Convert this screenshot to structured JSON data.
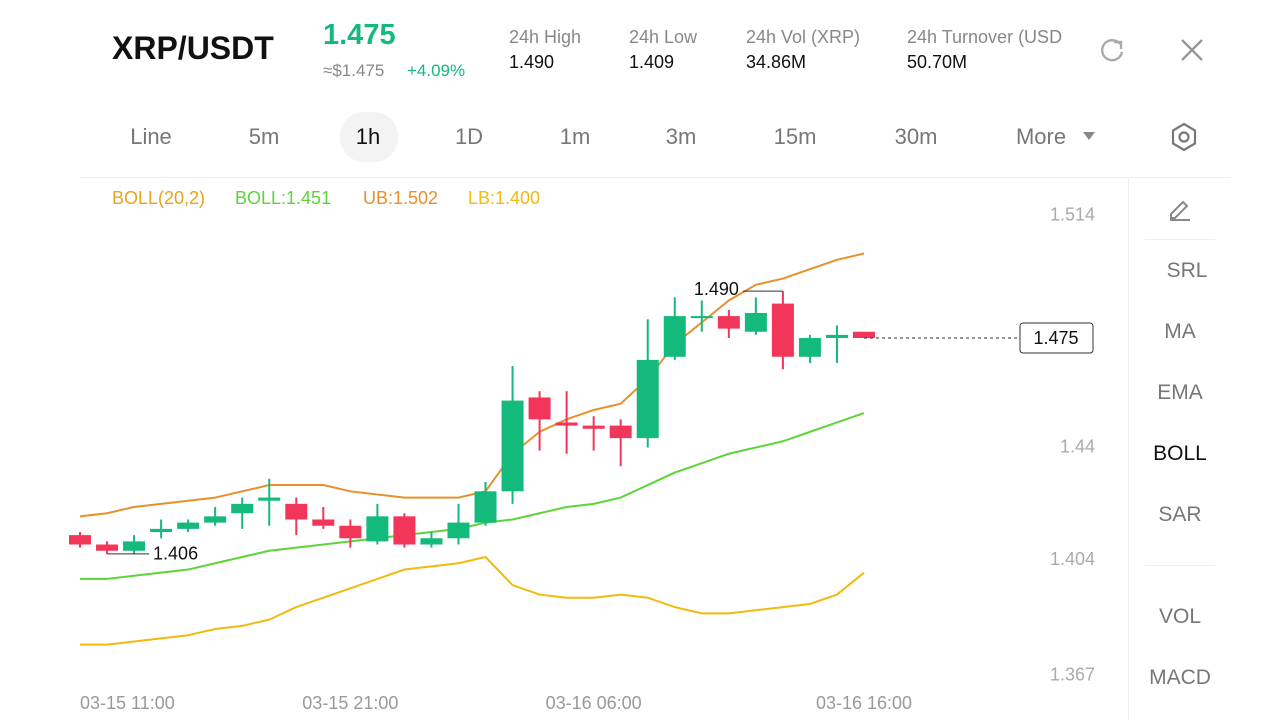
{
  "header": {
    "pair": "XRP/USDT",
    "price": "1.475",
    "approx": "≈$1.475",
    "change": "+4.09%",
    "stats": [
      {
        "label": "24h  High",
        "value": "1.490"
      },
      {
        "label": "24h  Low",
        "value": "1.409"
      },
      {
        "label": "24h  Vol (XRP)",
        "value": "34.86M"
      },
      {
        "label": "24h  Turnover (USD",
        "value": "50.70M"
      }
    ]
  },
  "tabs": [
    "Line",
    "5m",
    "1h",
    "1D",
    "1m",
    "3m",
    "15m",
    "30m",
    "More"
  ],
  "side_menu": [
    "SRL",
    "MA",
    "EMA",
    "BOLL",
    "SAR",
    "VOL",
    "MACD"
  ],
  "chart_data": {
    "type": "candlestick",
    "legend": [
      {
        "text": "BOLL(20,2)",
        "color": "#e9a21a"
      },
      {
        "text": "BOLL:1.451",
        "color": "#5fd33a"
      },
      {
        "text": "UB:1.502",
        "color": "#e8902c"
      },
      {
        "text": "LB:1.400",
        "color": "#f2b90f"
      }
    ],
    "categories": [
      "03-15 11:00",
      null,
      null,
      null,
      null,
      null,
      null,
      null,
      null,
      null,
      "03-15 21:00",
      null,
      null,
      null,
      null,
      null,
      null,
      null,
      null,
      "03-16 06:00",
      null,
      null,
      null,
      null,
      null,
      null,
      null,
      null,
      null,
      "03-16 16:00"
    ],
    "open": [
      1.412,
      1.409,
      1.407,
      1.413,
      1.414,
      1.416,
      1.419,
      1.423,
      1.422,
      1.417,
      1.415,
      1.41,
      1.418,
      1.409,
      1.411,
      1.416,
      1.426,
      1.456,
      1.448,
      1.447,
      1.447,
      1.443,
      1.469,
      1.482,
      1.482,
      1.477,
      1.486,
      1.469,
      1.475,
      1.477
    ],
    "high": [
      1.413,
      1.41,
      1.412,
      1.417,
      1.417,
      1.421,
      1.424,
      1.43,
      1.424,
      1.421,
      1.417,
      1.422,
      1.419,
      1.413,
      1.422,
      1.429,
      1.466,
      1.458,
      1.458,
      1.45,
      1.449,
      1.481,
      1.488,
      1.487,
      1.484,
      1.488,
      1.49,
      1.476,
      1.479,
      1.477
    ],
    "low": [
      1.408,
      1.406,
      1.406,
      1.411,
      1.413,
      1.415,
      1.414,
      1.415,
      1.412,
      1.414,
      1.408,
      1.409,
      1.408,
      1.408,
      1.409,
      1.415,
      1.422,
      1.439,
      1.438,
      1.439,
      1.434,
      1.44,
      1.468,
      1.477,
      1.475,
      1.476,
      1.465,
      1.467,
      1.467,
      1.475
    ],
    "close": [
      1.409,
      1.407,
      1.41,
      1.414,
      1.416,
      1.418,
      1.422,
      1.424,
      1.417,
      1.415,
      1.411,
      1.418,
      1.409,
      1.411,
      1.416,
      1.426,
      1.455,
      1.449,
      1.447,
      1.446,
      1.443,
      1.468,
      1.482,
      1.482,
      1.478,
      1.483,
      1.469,
      1.475,
      1.476,
      1.475
    ],
    "up_color": "#14b97c",
    "down_color": "#f2365a",
    "series": [
      {
        "color": "#e8902c",
        "values": [
          1.418,
          1.419,
          1.421,
          1.422,
          1.423,
          1.424,
          1.426,
          1.428,
          1.428,
          1.428,
          1.426,
          1.425,
          1.424,
          1.424,
          1.424,
          1.426,
          1.438,
          1.445,
          1.449,
          1.452,
          1.454,
          1.462,
          1.473,
          1.48,
          1.487,
          1.492,
          1.494,
          1.497,
          1.5,
          1.502
        ]
      },
      {
        "color": "#5fd33a",
        "values": [
          1.398,
          1.398,
          1.399,
          1.4,
          1.401,
          1.403,
          1.405,
          1.407,
          1.408,
          1.409,
          1.41,
          1.411,
          1.412,
          1.413,
          1.414,
          1.416,
          1.417,
          1.419,
          1.421,
          1.422,
          1.424,
          1.428,
          1.432,
          1.435,
          1.438,
          1.44,
          1.442,
          1.445,
          1.448,
          1.451
        ]
      },
      {
        "color": "#f2b90f",
        "values": [
          1.377,
          1.377,
          1.378,
          1.379,
          1.38,
          1.382,
          1.383,
          1.385,
          1.389,
          1.392,
          1.395,
          1.398,
          1.401,
          1.402,
          1.403,
          1.405,
          1.396,
          1.393,
          1.392,
          1.392,
          1.393,
          1.392,
          1.389,
          1.387,
          1.387,
          1.388,
          1.389,
          1.39,
          1.393,
          1.4
        ]
      }
    ],
    "ylim": [
      1.3625,
      1.5255
    ],
    "yticks": [
      1.514,
      1.44,
      1.404,
      1.367
    ],
    "annotations": {
      "high": "1.490",
      "low": "1.406",
      "last": "1.475"
    }
  }
}
